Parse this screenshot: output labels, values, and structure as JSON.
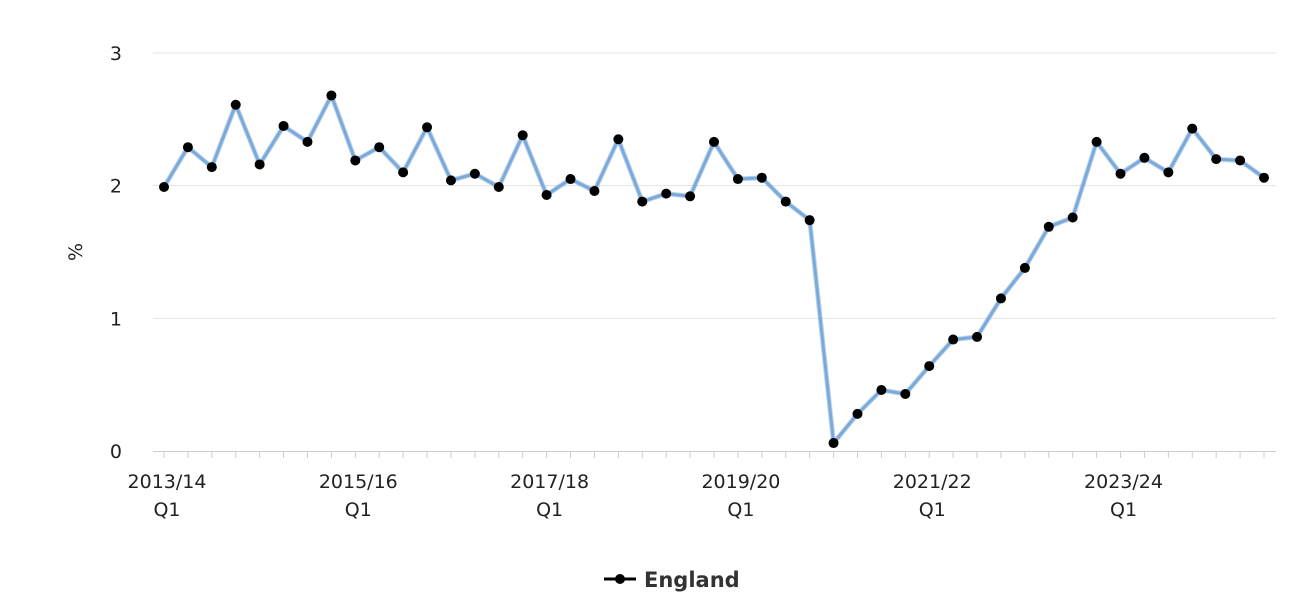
{
  "chart_data": {
    "type": "line",
    "ylabel": "%",
    "ylim": [
      0,
      3
    ],
    "y_ticks": [
      "0",
      "1",
      "2",
      "3"
    ],
    "grid": true,
    "legend_position": "bottom-center",
    "series_color": "#7aaadc",
    "marker_color": "#000000",
    "x_tick_labels": [
      {
        "index": 0,
        "line1": "2013/14",
        "line2": "Q1"
      },
      {
        "index": 8,
        "line1": "2015/16",
        "line2": "Q1"
      },
      {
        "index": 16,
        "line1": "2017/18",
        "line2": "Q1"
      },
      {
        "index": 24,
        "line1": "2019/20",
        "line2": "Q1"
      },
      {
        "index": 32,
        "line1": "2021/22",
        "line2": "Q1"
      },
      {
        "index": 40,
        "line1": "2023/24",
        "line2": "Q1"
      }
    ],
    "series": [
      {
        "name": "England",
        "values": [
          1.99,
          2.29,
          2.14,
          2.61,
          2.16,
          2.45,
          2.33,
          2.68,
          2.19,
          2.29,
          2.1,
          2.44,
          2.04,
          2.09,
          1.99,
          2.38,
          1.93,
          2.05,
          1.96,
          2.35,
          1.88,
          1.94,
          1.92,
          2.33,
          2.05,
          2.06,
          1.88,
          1.74,
          0.06,
          0.28,
          0.46,
          0.43,
          0.64,
          0.84,
          0.86,
          1.15,
          1.38,
          1.69,
          1.76,
          2.33,
          2.09,
          2.21,
          2.1,
          2.43,
          2.2,
          2.19,
          2.06
        ]
      }
    ]
  }
}
